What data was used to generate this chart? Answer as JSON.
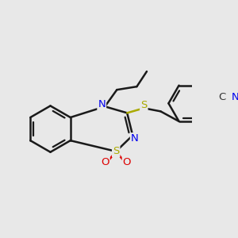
{
  "bg_color": "#e8e8e8",
  "bond_color": "#1a1a1a",
  "bond_width": 1.8,
  "atom_colors": {
    "N": "#0000ee",
    "S": "#aaaa00",
    "O": "#dd0000",
    "C_dark": "#333333",
    "C_nitrile": "#333333"
  },
  "font_size": 9.5,
  "ring_r": 0.58,
  "ring2_r": 0.52
}
